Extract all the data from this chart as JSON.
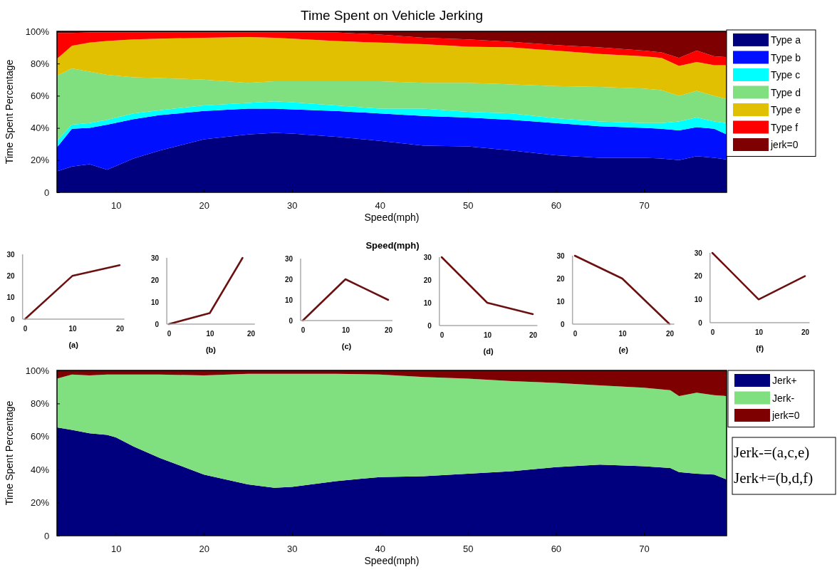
{
  "chart_data": [
    {
      "type": "area",
      "title": "Time Spent on Vehicle Jerking",
      "xlabel": "Speed(mph)",
      "ylabel": "Time Spent Percentage",
      "stacked": true,
      "legend": "right",
      "grid": false,
      "x": [
        3.3,
        5,
        7,
        9,
        12,
        15,
        20,
        25,
        28,
        30,
        35,
        40,
        45,
        50,
        55,
        60,
        65,
        70,
        72,
        74,
        76,
        78,
        79.4
      ],
      "xlim": [
        3.3,
        79.4
      ],
      "xticks": [
        10,
        20,
        30,
        40,
        50,
        60,
        70
      ],
      "ylim": [
        0,
        100
      ],
      "yticks": [
        0,
        {
          "value": 20,
          "label": "20%"
        },
        {
          "value": 40,
          "label": "40%"
        },
        {
          "value": 60,
          "label": "60%"
        },
        {
          "value": 80,
          "label": "80%"
        },
        {
          "value": 100,
          "label": "100%"
        }
      ],
      "series": [
        {
          "name": "Type a",
          "color": "#00007f",
          "values": [
            13,
            16,
            17.5,
            14,
            21,
            26,
            33,
            36,
            37,
            36.5,
            34.5,
            32,
            29,
            28.5,
            26,
            23,
            21.5,
            21.5,
            21,
            20,
            22.5,
            21.5,
            20.5
          ]
        },
        {
          "name": "Type b",
          "color": "#0010ff",
          "values": [
            15,
            23.5,
            22.5,
            28,
            24.5,
            22,
            17.5,
            16,
            15,
            15,
            16,
            17,
            18.5,
            18,
            19,
            20,
            19.5,
            18.5,
            18.5,
            18.5,
            18,
            18,
            15.5
          ]
        },
        {
          "name": "Type c",
          "color": "#00ffff",
          "values": [
            4,
            2.5,
            3,
            3,
            3.5,
            3,
            3.5,
            3.5,
            4.5,
            4.5,
            3.5,
            3,
            4.5,
            3.5,
            4,
            3,
            3,
            3,
            3.5,
            5.5,
            6,
            4.5,
            7
          ]
        },
        {
          "name": "Type d",
          "color": "#80e080",
          "values": [
            40.5,
            35,
            32,
            28,
            22.5,
            20,
            16,
            12.5,
            12.5,
            13,
            15,
            17,
            16,
            18,
            18,
            20,
            21.5,
            21.5,
            20.5,
            16,
            16.5,
            16,
            15
          ]
        },
        {
          "name": "Type e",
          "color": "#e0c000",
          "values": [
            10.5,
            14,
            18,
            21,
            23.5,
            24.5,
            26,
            28.5,
            27,
            26.5,
            25,
            24,
            24,
            22.5,
            23,
            22,
            20.5,
            20,
            20,
            18.5,
            18,
            19,
            21
          ]
        },
        {
          "name": "Type f",
          "color": "#ff0000",
          "values": [
            16,
            8,
            6.3,
            5.5,
            4.5,
            4,
            3.5,
            3,
            3.5,
            4,
            5.3,
            5,
            4,
            4.5,
            3.5,
            3.5,
            4,
            3.5,
            3.5,
            5,
            7,
            5.5,
            5
          ]
        },
        {
          "name": "jerk=0",
          "color": "#7f0000",
          "values": [
            1,
            1,
            0.7,
            0.5,
            0.5,
            0.5,
            0.5,
            0.5,
            0.5,
            0.5,
            0.7,
            2,
            4,
            5,
            6.5,
            8.5,
            10,
            12,
            13,
            16.5,
            12,
            15.5,
            16
          ]
        }
      ]
    },
    {
      "type": "line",
      "xlabel": "(a)",
      "x": [
        0,
        10,
        20
      ],
      "xlim": [
        -0.5,
        21
      ],
      "xticks": [
        0,
        10,
        20
      ],
      "ylim": [
        0,
        30
      ],
      "yticks": [
        0,
        10,
        20,
        30
      ],
      "legend": false,
      "series": [
        {
          "color": "#6b1010",
          "values": [
            0,
            20,
            25
          ]
        }
      ]
    },
    {
      "type": "line",
      "xlabel": "(b)",
      "x": [
        0,
        10,
        18
      ],
      "xlim": [
        -0.5,
        21
      ],
      "xticks": [
        0,
        10,
        20
      ],
      "ylim": [
        0,
        30
      ],
      "yticks": [
        0,
        10,
        20,
        30
      ],
      "legend": false,
      "series": [
        {
          "color": "#6b1010",
          "values": [
            0,
            5,
            30
          ]
        }
      ]
    },
    {
      "type": "line",
      "title": "Speed(mph)",
      "xlabel": "(c)",
      "x": [
        0,
        10,
        20
      ],
      "xlim": [
        -0.5,
        21
      ],
      "xticks": [
        0,
        10,
        20
      ],
      "ylim": [
        0,
        30
      ],
      "yticks": [
        0,
        10,
        20,
        30
      ],
      "legend": false,
      "series": [
        {
          "color": "#6b1010",
          "values": [
            0,
            20,
            10
          ]
        }
      ]
    },
    {
      "type": "line",
      "xlabel": "(d)",
      "x": [
        0,
        10,
        20
      ],
      "xlim": [
        -0.5,
        21
      ],
      "xticks": [
        0,
        10,
        20
      ],
      "ylim": [
        0,
        30
      ],
      "yticks": [
        0,
        10,
        20,
        30
      ],
      "legend": false,
      "series": [
        {
          "color": "#6b1010",
          "values": [
            30,
            10,
            5
          ]
        }
      ]
    },
    {
      "type": "line",
      "xlabel": "(e)",
      "x": [
        0,
        10,
        20
      ],
      "xlim": [
        -0.5,
        21
      ],
      "xticks": [
        0,
        10,
        20
      ],
      "ylim": [
        0,
        30
      ],
      "yticks": [
        0,
        10,
        20,
        30
      ],
      "legend": false,
      "series": [
        {
          "color": "#6b1010",
          "values": [
            30,
            20,
            0
          ]
        }
      ]
    },
    {
      "type": "line",
      "xlabel": "(f)",
      "x": [
        0,
        10,
        20
      ],
      "xlim": [
        -0.5,
        21
      ],
      "xticks": [
        0,
        10,
        20
      ],
      "ylim": [
        0,
        30
      ],
      "yticks": [
        0,
        10,
        20,
        30
      ],
      "legend": false,
      "series": [
        {
          "color": "#6b1010",
          "values": [
            30,
            10,
            20
          ]
        }
      ]
    },
    {
      "type": "area",
      "xlabel": "Speed(mph)",
      "ylabel": "Time Spent Percentage",
      "stacked": true,
      "legend": "right",
      "grid": false,
      "x": [
        3.3,
        5,
        7,
        9,
        10,
        12,
        15,
        20,
        25,
        28,
        30,
        35,
        40,
        45,
        50,
        55,
        60,
        65,
        70,
        73,
        74,
        76,
        78,
        79.4
      ],
      "xlim": [
        3.3,
        79.4
      ],
      "xticks": [
        10,
        20,
        30,
        40,
        50,
        60,
        70
      ],
      "ylim": [
        0,
        100
      ],
      "yticks": [
        0,
        {
          "value": 20,
          "label": "20%"
        },
        {
          "value": 40,
          "label": "40%"
        },
        {
          "value": 60,
          "label": "60%"
        },
        {
          "value": 80,
          "label": "80%"
        },
        {
          "value": 100,
          "label": "100%"
        }
      ],
      "annotations": [
        "Jerk-=(a,c,e)",
        "Jerk+=(b,d,f)"
      ],
      "series": [
        {
          "name": "Jerk+",
          "color": "#00007f",
          "values": [
            65.5,
            64,
            62,
            61,
            59.5,
            54,
            47,
            37,
            31,
            29,
            29.5,
            33,
            35.5,
            36,
            37.5,
            39,
            41.5,
            43,
            42,
            41,
            38.5,
            37.5,
            37,
            34
          ]
        },
        {
          "name": "Jerk-",
          "color": "#80e080",
          "values": [
            29.5,
            33.5,
            35,
            36.5,
            38,
            43.5,
            50.5,
            60,
            67,
            69,
            68.5,
            65,
            62,
            60,
            57.5,
            54.5,
            51,
            48,
            47.5,
            47,
            46,
            49,
            48,
            50.5
          ]
        },
        {
          "name": "jerk=0",
          "color": "#7f0000",
          "values": [
            5,
            2.5,
            3,
            2.5,
            2.5,
            2.5,
            2.5,
            3,
            2,
            2,
            2,
            2,
            2.5,
            4,
            5,
            6.5,
            7.5,
            9,
            10.5,
            12,
            15.5,
            13.5,
            15,
            15.5
          ]
        }
      ]
    }
  ]
}
